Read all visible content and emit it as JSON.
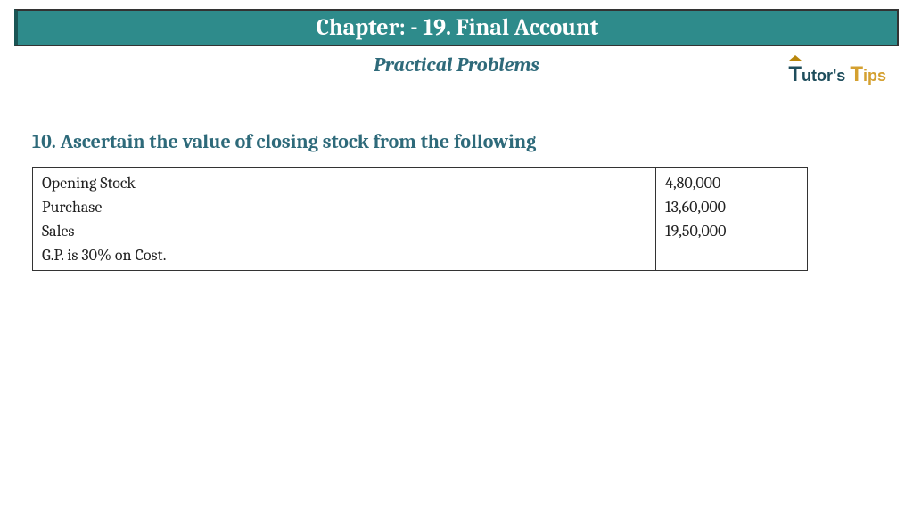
{
  "header": {
    "title": "Chapter: -  19. Final Account",
    "subtitle": "Practical Problems"
  },
  "logo": {
    "part1_cap": "T",
    "part1_rest": "utor's",
    "part2_cap": "T",
    "part2_rest": "ips"
  },
  "question": {
    "text": "10. Ascertain the value of closing stock from the following"
  },
  "table": {
    "rows": [
      {
        "label": "Opening Stock",
        "value": "4,80,000"
      },
      {
        "label": "Purchase",
        "value": "13,60,000"
      },
      {
        "label": "Sales",
        "value": "19,50,000"
      },
      {
        "label": "G.P. is 30% on Cost.",
        "value": ""
      }
    ]
  },
  "colors": {
    "header_bg": "#2e8b8b",
    "header_text": "#ffffff",
    "subtitle_text": "#2e6a7a",
    "question_text": "#2e6a7a",
    "border": "#333333",
    "body_text": "#222222"
  }
}
